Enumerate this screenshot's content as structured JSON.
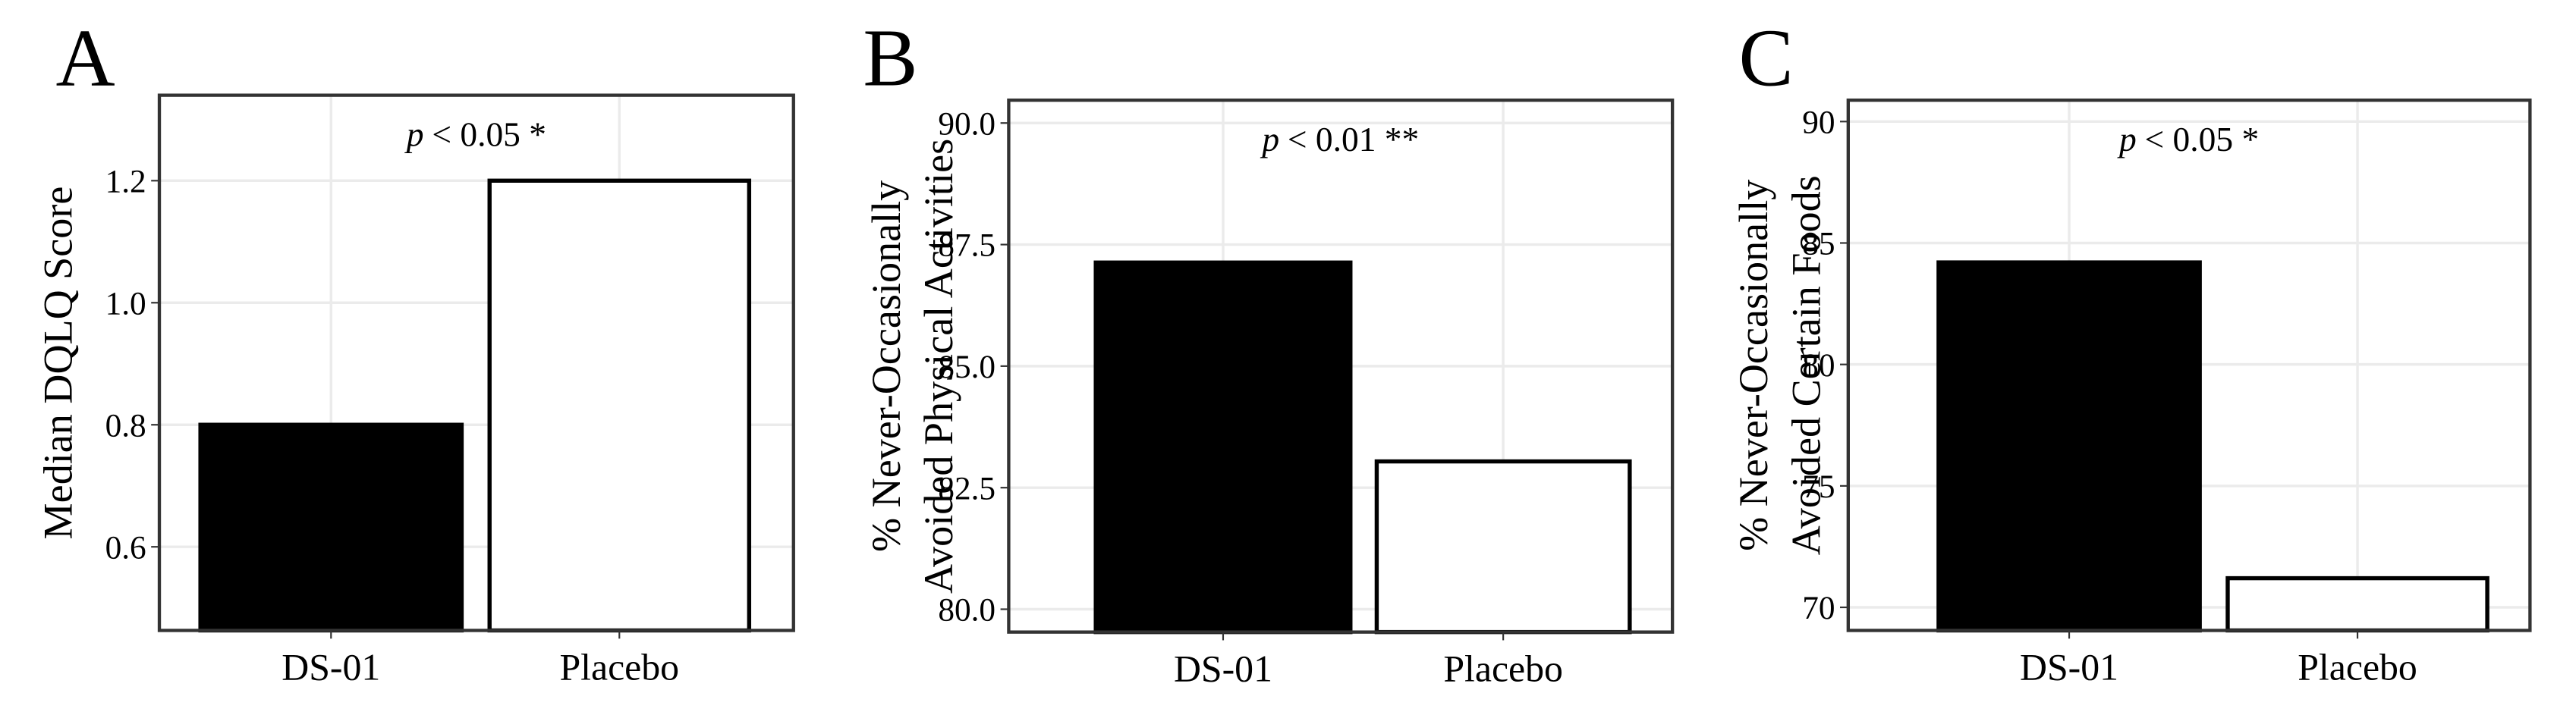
{
  "chart_data": [
    {
      "type": "bar",
      "panel_label": "A",
      "ylabel": [
        "Median DQLQ Score"
      ],
      "annotation_prefix": "p",
      "annotation": "< 0.05 *",
      "categories": [
        "DS-01",
        "Placebo"
      ],
      "values": [
        0.8,
        1.2
      ],
      "colors": [
        "#000000",
        "#ffffff"
      ],
      "ylim": [
        0.463,
        1.34
      ],
      "yticks": [
        0.6,
        0.8,
        {
          "value": 1,
          "label": "1.0"
        },
        1.2
      ],
      "grid": true
    },
    {
      "type": "bar",
      "panel_label": "B",
      "ylabel": [
        "% Never-Occasionally",
        "Avoided Physical Activities"
      ],
      "annotation_prefix": "p",
      "annotation": "< 0.01 **",
      "categories": [
        "DS-01",
        "Placebo"
      ],
      "values": [
        87.13,
        83.04
      ],
      "colors": [
        "#000000",
        "#ffffff"
      ],
      "ylim": [
        79.53,
        90.47
      ],
      "yticks": [
        {
          "value": 80,
          "label": "80.0"
        },
        82.5,
        {
          "value": 85,
          "label": "85.0"
        },
        87.5,
        {
          "value": 90,
          "label": "90.0"
        }
      ],
      "grid": true
    },
    {
      "type": "bar",
      "panel_label": "C",
      "ylabel": [
        "% Never-Occasionally",
        "Avoided Certain Foods"
      ],
      "annotation_prefix": "p",
      "annotation": "< 0.05 *",
      "categories": [
        "DS-01",
        "Placebo"
      ],
      "values": [
        84.2,
        71.2
      ],
      "colors": [
        "#000000",
        "#ffffff"
      ],
      "ylim": [
        69.05,
        90.88
      ],
      "yticks": [
        70,
        75,
        80,
        85,
        90
      ],
      "grid": true
    }
  ]
}
